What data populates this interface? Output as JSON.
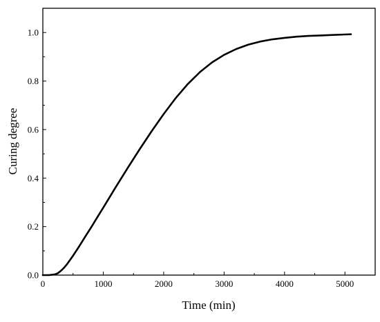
{
  "chart_data": {
    "type": "line",
    "title": "",
    "xlabel": "Time (min)",
    "ylabel": "Curing degree",
    "xlim": [
      0,
      5500
    ],
    "ylim": [
      0,
      1.1
    ],
    "xticks": [
      0,
      1000,
      2000,
      3000,
      4000,
      5000
    ],
    "yticks": [
      0.0,
      0.2,
      0.4,
      0.6,
      0.8,
      1.0
    ],
    "xtick_labels": [
      "0",
      "1000",
      "2000",
      "3000",
      "4000",
      "5000"
    ],
    "ytick_labels": [
      "0.0",
      "0.2",
      "0.4",
      "0.6",
      "0.8",
      "1.0"
    ],
    "grid": false,
    "legend": "none",
    "series": [
      {
        "color": "#000000",
        "x": [
          0,
          100,
          200,
          250,
          300,
          350,
          400,
          500,
          600,
          700,
          800,
          900,
          1000,
          1200,
          1400,
          1600,
          1800,
          2000,
          2200,
          2400,
          2600,
          2800,
          3000,
          3200,
          3400,
          3600,
          3800,
          4000,
          4200,
          4400,
          4600,
          4800,
          5000,
          5100
        ],
        "y": [
          0.0,
          0.0,
          0.003,
          0.008,
          0.018,
          0.03,
          0.045,
          0.08,
          0.118,
          0.158,
          0.197,
          0.238,
          0.278,
          0.36,
          0.44,
          0.518,
          0.593,
          0.664,
          0.73,
          0.788,
          0.837,
          0.877,
          0.908,
          0.932,
          0.95,
          0.963,
          0.972,
          0.978,
          0.983,
          0.986,
          0.988,
          0.99,
          0.992,
          0.993
        ]
      }
    ]
  }
}
